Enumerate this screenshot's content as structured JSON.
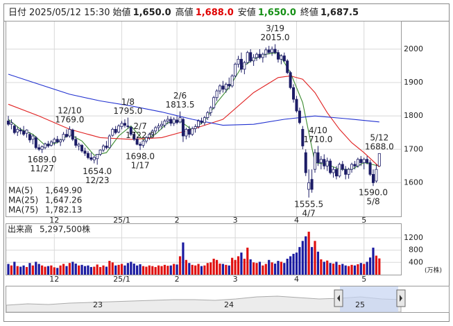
{
  "header": {
    "date_label": "日付",
    "date": "2025/05/12 15:30",
    "open_label": "始値",
    "open": "1,650.0",
    "high_label": "高値",
    "high": "1,688.0",
    "low_label": "安値",
    "low": "1,650.0",
    "close_label": "終値",
    "close": "1,687.5"
  },
  "chart_data": [
    {
      "type": "candlestick",
      "categories": [
        null,
        null,
        null,
        null,
        null,
        null,
        null,
        null,
        null,
        null,
        null,
        null,
        null,
        null,
        null,
        "12",
        null,
        null,
        null,
        null,
        null,
        null,
        null,
        null,
        null,
        null,
        null,
        null,
        null,
        null,
        null,
        null,
        null,
        null,
        null,
        null,
        null,
        "25/1",
        null,
        null,
        null,
        null,
        null,
        null,
        null,
        null,
        null,
        null,
        null,
        null,
        null,
        null,
        null,
        null,
        null,
        "2",
        null,
        null,
        null,
        null,
        null,
        null,
        null,
        null,
        null,
        null,
        null,
        null,
        null,
        null,
        null,
        null,
        null,
        null,
        "3",
        null,
        null,
        null,
        null,
        null,
        null,
        null,
        null,
        null,
        null,
        null,
        null,
        null,
        null,
        null,
        null,
        null,
        null,
        null,
        "4",
        null,
        null,
        null,
        null,
        null,
        null,
        null,
        null,
        null,
        null,
        null,
        null,
        null,
        null,
        null,
        null,
        null,
        null,
        null,
        null,
        null,
        "5",
        null,
        null,
        null,
        null,
        null
      ],
      "ohlc": [
        [
          1785,
          1800,
          1770,
          1775
        ],
        [
          1775,
          1790,
          1760,
          1780
        ],
        [
          1770,
          1775,
          1745,
          1750
        ],
        [
          1752,
          1768,
          1740,
          1760
        ],
        [
          1758,
          1765,
          1745,
          1755
        ],
        [
          1755,
          1770,
          1740,
          1745
        ],
        [
          1748,
          1760,
          1735,
          1758
        ],
        [
          1745,
          1752,
          1720,
          1728
        ],
        [
          1730,
          1745,
          1715,
          1740
        ],
        [
          1735,
          1740,
          1700,
          1705
        ],
        [
          1705,
          1715,
          1695,
          1700
        ],
        [
          1700,
          1712,
          1689,
          1708
        ],
        [
          1705,
          1720,
          1700,
          1716
        ],
        [
          1716,
          1725,
          1705,
          1710
        ],
        [
          1712,
          1728,
          1708,
          1722
        ],
        [
          1720,
          1735,
          1712,
          1730
        ],
        [
          1730,
          1740,
          1718,
          1722
        ],
        [
          1722,
          1732,
          1710,
          1728
        ],
        [
          1728,
          1752,
          1722,
          1745
        ],
        [
          1745,
          1760,
          1735,
          1738
        ],
        [
          1740,
          1769,
          1735,
          1760
        ],
        [
          1758,
          1762,
          1725,
          1730
        ],
        [
          1730,
          1740,
          1705,
          1712
        ],
        [
          1710,
          1720,
          1697,
          1715
        ],
        [
          1712,
          1716,
          1690,
          1695
        ],
        [
          1695,
          1705,
          1680,
          1688
        ],
        [
          1688,
          1695,
          1670,
          1675
        ],
        [
          1675,
          1690,
          1665,
          1670
        ],
        [
          1668,
          1680,
          1658,
          1676
        ],
        [
          1672,
          1686,
          1654,
          1685
        ],
        [
          1685,
          1700,
          1680,
          1698
        ],
        [
          1698,
          1715,
          1692,
          1710
        ],
        [
          1710,
          1725,
          1700,
          1705
        ],
        [
          1705,
          1745,
          1702,
          1740
        ],
        [
          1742,
          1765,
          1738,
          1760
        ],
        [
          1760,
          1770,
          1745,
          1750
        ],
        [
          1752,
          1775,
          1748,
          1770
        ],
        [
          1768,
          1785,
          1760,
          1778
        ],
        [
          1778,
          1790,
          1765,
          1772
        ],
        [
          1770,
          1795,
          1762,
          1768
        ],
        [
          1766,
          1770,
          1740,
          1745
        ],
        [
          1745,
          1752,
          1725,
          1730
        ],
        [
          1730,
          1738,
          1712,
          1715
        ],
        [
          1715,
          1722,
          1698,
          1712
        ],
        [
          1712,
          1728,
          1705,
          1725
        ],
        [
          1725,
          1740,
          1718,
          1735
        ],
        [
          1735,
          1750,
          1728,
          1745
        ],
        [
          1745,
          1760,
          1738,
          1755
        ],
        [
          1755,
          1770,
          1745,
          1765
        ],
        [
          1765,
          1778,
          1755,
          1770
        ],
        [
          1770,
          1785,
          1760,
          1775
        ],
        [
          1772,
          1790,
          1765,
          1785
        ],
        [
          1785,
          1800,
          1775,
          1790
        ],
        [
          1790,
          1798,
          1770,
          1778
        ],
        [
          1778,
          1796,
          1770,
          1790
        ],
        [
          1788,
          1800,
          1775,
          1780
        ],
        [
          1782,
          1813.5,
          1778,
          1795
        ],
        [
          1790,
          1795,
          1722,
          1740
        ],
        [
          1740,
          1765,
          1730,
          1760
        ],
        [
          1760,
          1770,
          1735,
          1745
        ],
        [
          1745,
          1768,
          1740,
          1762
        ],
        [
          1762,
          1775,
          1750,
          1768
        ],
        [
          1768,
          1790,
          1762,
          1785
        ],
        [
          1785,
          1795,
          1775,
          1780
        ],
        [
          1780,
          1800,
          1772,
          1795
        ],
        [
          1795,
          1815,
          1788,
          1810
        ],
        [
          1810,
          1830,
          1800,
          1825
        ],
        [
          1825,
          1860,
          1820,
          1855
        ],
        [
          1855,
          1880,
          1845,
          1875
        ],
        [
          1875,
          1895,
          1865,
          1890
        ],
        [
          1890,
          1905,
          1870,
          1880
        ],
        [
          1880,
          1900,
          1870,
          1895
        ],
        [
          1895,
          1915,
          1880,
          1890
        ],
        [
          1890,
          1925,
          1885,
          1920
        ],
        [
          1920,
          1960,
          1915,
          1955
        ],
        [
          1955,
          1980,
          1945,
          1970
        ],
        [
          1970,
          1990,
          1930,
          1940
        ],
        [
          1940,
          1965,
          1925,
          1960
        ],
        [
          1960,
          1995,
          1955,
          1990
        ],
        [
          1990,
          2000,
          1960,
          1965
        ],
        [
          1965,
          1985,
          1950,
          1975
        ],
        [
          1975,
          1990,
          1965,
          1985
        ],
        [
          1985,
          2000,
          1970,
          1975
        ],
        [
          1975,
          1990,
          1960,
          1985
        ],
        [
          1985,
          2005,
          1975,
          1998
        ],
        [
          1998,
          2010,
          1985,
          1990
        ],
        [
          1990,
          2008,
          1980,
          2000
        ],
        [
          2000,
          2015,
          1985,
          1990
        ],
        [
          1990,
          1998,
          1960,
          1970
        ],
        [
          1970,
          1985,
          1955,
          1980
        ],
        [
          1980,
          1990,
          1962,
          1965
        ],
        [
          1965,
          1970,
          1925,
          1930
        ],
        [
          1930,
          1935,
          1880,
          1885
        ],
        [
          1885,
          1895,
          1840,
          1850
        ],
        [
          1850,
          1860,
          1810,
          1815
        ],
        [
          1815,
          1825,
          1775,
          1780
        ],
        [
          1760,
          1770,
          1700,
          1710
        ],
        [
          1690,
          1700,
          1620,
          1630
        ],
        [
          1580,
          1640,
          1555.5,
          1600
        ],
        [
          1610,
          1640,
          1570,
          1580
        ],
        [
          1640,
          1700,
          1630,
          1690
        ],
        [
          1690,
          1710,
          1650,
          1660
        ],
        [
          1660,
          1680,
          1640,
          1670
        ],
        [
          1670,
          1685,
          1640,
          1650
        ],
        [
          1650,
          1675,
          1635,
          1665
        ],
        [
          1665,
          1672,
          1625,
          1630
        ],
        [
          1630,
          1648,
          1615,
          1640
        ],
        [
          1640,
          1650,
          1610,
          1620
        ],
        [
          1620,
          1660,
          1615,
          1655
        ],
        [
          1655,
          1665,
          1635,
          1640
        ],
        [
          1640,
          1650,
          1610,
          1625
        ],
        [
          1625,
          1645,
          1612,
          1640
        ],
        [
          1640,
          1660,
          1630,
          1655
        ],
        [
          1655,
          1665,
          1640,
          1650
        ],
        [
          1650,
          1675,
          1645,
          1670
        ],
        [
          1670,
          1680,
          1650,
          1660
        ],
        [
          1660,
          1675,
          1640,
          1670
        ],
        [
          1670,
          1680,
          1655,
          1660
        ],
        [
          1660,
          1668,
          1620,
          1625
        ],
        [
          1625,
          1640,
          1590,
          1600
        ],
        [
          1605,
          1655,
          1600,
          1640
        ],
        [
          1650,
          1688,
          1650,
          1687.5
        ]
      ],
      "up_color": "#ffffff",
      "down_color": "#1c1c66",
      "ylim": [
        1499,
        2083
      ],
      "yticks": [
        1600,
        1700,
        1800,
        1900,
        2000
      ],
      "grid": true,
      "series": [
        {
          "name": "MA(5)",
          "color": "#3a8a2e",
          "value_label": "1,649.90",
          "x": [
            0,
            4,
            8,
            12,
            16,
            20,
            24,
            28,
            32,
            36,
            40,
            44,
            48,
            52,
            56,
            60,
            64,
            68,
            72,
            76,
            80,
            84,
            88,
            92,
            96,
            100,
            104,
            108,
            112,
            116,
            121
          ],
          "values": [
            1790,
            1760,
            1745,
            1712,
            1720,
            1745,
            1725,
            1682,
            1690,
            1740,
            1770,
            1728,
            1745,
            1780,
            1785,
            1758,
            1785,
            1840,
            1885,
            1945,
            1970,
            1985,
            1990,
            1930,
            1840,
            1660,
            1655,
            1640,
            1640,
            1660,
            1649.9
          ]
        },
        {
          "name": "MA(25)",
          "color": "#e02020",
          "value_label": "1,647.26",
          "x": [
            0,
            10,
            20,
            30,
            40,
            50,
            60,
            70,
            80,
            88,
            92,
            96,
            100,
            104,
            108,
            112,
            116,
            121
          ],
          "values": [
            1835,
            1800,
            1760,
            1735,
            1730,
            1735,
            1760,
            1790,
            1870,
            1915,
            1920,
            1910,
            1870,
            1810,
            1760,
            1720,
            1690,
            1647.26
          ]
        },
        {
          "name": "MA(75)",
          "color": "#2030d0",
          "value_label": "1,782.13",
          "x": [
            0,
            10,
            20,
            30,
            40,
            50,
            60,
            70,
            80,
            90,
            100,
            110,
            121
          ],
          "values": [
            1925,
            1895,
            1865,
            1845,
            1830,
            1812,
            1790,
            1772,
            1775,
            1790,
            1800,
            1792,
            1782.13
          ]
        }
      ],
      "annotations": [
        {
          "price": {
            "value": 1689,
            "label": "1689.0"
          },
          "date": "11/27"
        },
        {
          "date": "12/10",
          "price": {
            "value": 1769,
            "label": "1769.0"
          }
        },
        {
          "price": {
            "value": 1654,
            "label": "1654.0"
          },
          "date": "12/23"
        },
        {
          "date": "1/8",
          "price": {
            "value": 1795,
            "label": "1795.0"
          }
        },
        {
          "price": {
            "value": 1698,
            "label": "1698.0"
          },
          "date": "1/17"
        },
        {
          "date": "2/6",
          "price": {
            "value": 1813.5,
            "label": "1813.5"
          }
        },
        {
          "price": {
            "value": 1722,
            "label": "1722.0"
          },
          "date": "2/7"
        },
        {
          "date": "3/19",
          "price": {
            "value": 2015,
            "label": "2015.0"
          }
        },
        {
          "price": {
            "value": 1555.5,
            "label": "1555.5"
          },
          "date": "4/7"
        },
        {
          "date": "4/10",
          "price": {
            "value": 1710,
            "label": "1710.0"
          }
        },
        {
          "date": "5/12",
          "price": {
            "value": 1688,
            "label": "1688.0"
          }
        },
        {
          "price": {
            "value": 1590,
            "label": "1590.0"
          },
          "date": "5/8"
        }
      ]
    },
    {
      "type": "bar",
      "title": "出来高",
      "value_label": "5,297,500株",
      "unit": "(万株)",
      "up_color": "#e01010",
      "down_color": "#1a1aa0",
      "values": [
        350,
        300,
        420,
        280,
        260,
        300,
        250,
        380,
        300,
        420,
        350,
        300,
        260,
        280,
        300,
        240,
        220,
        300,
        350,
        280,
        380,
        420,
        360,
        300,
        320,
        280,
        300,
        250,
        260,
        330,
        250,
        300,
        260,
        450,
        400,
        300,
        320,
        350,
        300,
        380,
        420,
        360,
        300,
        340,
        280,
        260,
        300,
        280,
        250,
        300,
        280,
        320,
        290,
        300,
        350,
        330,
        600,
        1050,
        480,
        380,
        320,
        300,
        350,
        280,
        300,
        380,
        400,
        520,
        480,
        360,
        350,
        320,
        300,
        550,
        480,
        600,
        720,
        520,
        880,
        500,
        400,
        380,
        420,
        300,
        350,
        480,
        400,
        360,
        450,
        420,
        380,
        520,
        600,
        680,
        720,
        900,
        1100,
        1250,
        1400,
        900,
        1100,
        750,
        500,
        420,
        460,
        380,
        360,
        420,
        320,
        350,
        300,
        280,
        320,
        300,
        340,
        380,
        350,
        420,
        560,
        880,
        620,
        529.75
      ],
      "ylim": [
        0,
        1650
      ],
      "yticks": [
        400,
        800,
        1200
      ]
    }
  ],
  "navigator": {
    "labels": [
      "23",
      "24",
      "25"
    ]
  }
}
